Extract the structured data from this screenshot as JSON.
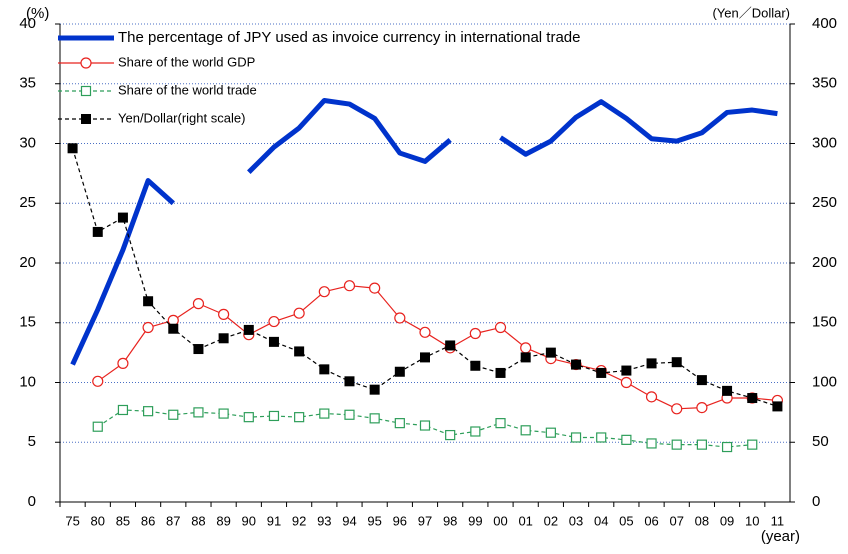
{
  "chart_data": {
    "type": "line",
    "y_label": "(%)",
    "y2_label": "(Yen／Dollar)",
    "x_label": "(year)",
    "categories": [
      "75",
      "80",
      "85",
      "86",
      "87",
      "88",
      "89",
      "90",
      "91",
      "92",
      "93",
      "94",
      "95",
      "96",
      "97",
      "98",
      "99",
      "00",
      "01",
      "02",
      "03",
      "04",
      "05",
      "06",
      "07",
      "08",
      "09",
      "10",
      "11"
    ],
    "ylim": [
      0,
      40
    ],
    "yticks": [
      0,
      5,
      10,
      15,
      20,
      25,
      30,
      35,
      40
    ],
    "y2lim": [
      0,
      400
    ],
    "y2ticks": [
      0,
      50,
      100,
      150,
      200,
      250,
      300,
      350,
      400
    ],
    "grid": true,
    "legend": "top-left",
    "series": [
      {
        "name": "The percentage of JPY used as invoice currency in international trade",
        "color": "#0033cc",
        "marker": "none",
        "dash": false,
        "width": 5,
        "values": [
          11.5,
          16.1,
          21.1,
          26.9,
          25.0,
          null,
          null,
          27.6,
          29.7,
          31.3,
          33.6,
          33.3,
          32.1,
          29.2,
          28.5,
          30.3,
          null,
          30.5,
          29.1,
          30.2,
          32.2,
          33.5,
          32.1,
          30.4,
          30.2,
          30.9,
          32.6,
          32.8,
          32.5
        ]
      },
      {
        "name": "Share of the world GDP",
        "color": "#e8231f",
        "marker": "circle",
        "dash": false,
        "width": 1.2,
        "values": [
          null,
          10.1,
          11.6,
          14.6,
          15.2,
          16.6,
          15.7,
          14.0,
          15.1,
          15.8,
          17.6,
          18.1,
          17.9,
          15.4,
          14.2,
          12.9,
          14.1,
          14.6,
          12.9,
          12.0,
          11.5,
          11.0,
          10.0,
          8.8,
          7.8,
          7.9,
          8.7,
          8.7,
          8.5
        ]
      },
      {
        "name": "Share of the world trade",
        "color": "#2e9e5a",
        "marker": "square",
        "dash": true,
        "width": 1.2,
        "values": [
          null,
          6.3,
          7.7,
          7.6,
          7.3,
          7.5,
          7.4,
          7.1,
          7.2,
          7.1,
          7.4,
          7.3,
          7.0,
          6.6,
          6.4,
          5.6,
          5.9,
          6.6,
          6.0,
          5.8,
          5.4,
          5.4,
          5.2,
          4.9,
          4.8,
          4.8,
          4.6,
          4.8,
          null
        ]
      },
      {
        "name": "Yen/Dollar(right scale)",
        "color": "#000000",
        "marker": "filled-square",
        "dash": true,
        "width": 1.2,
        "axis": "y2",
        "values": [
          296,
          226,
          238,
          168,
          145,
          128,
          137,
          144,
          134,
          126,
          111,
          101,
          94,
          109,
          121,
          131,
          114,
          108,
          121,
          125,
          115,
          108,
          110,
          116,
          117,
          102,
          93,
          87,
          80
        ]
      }
    ]
  }
}
